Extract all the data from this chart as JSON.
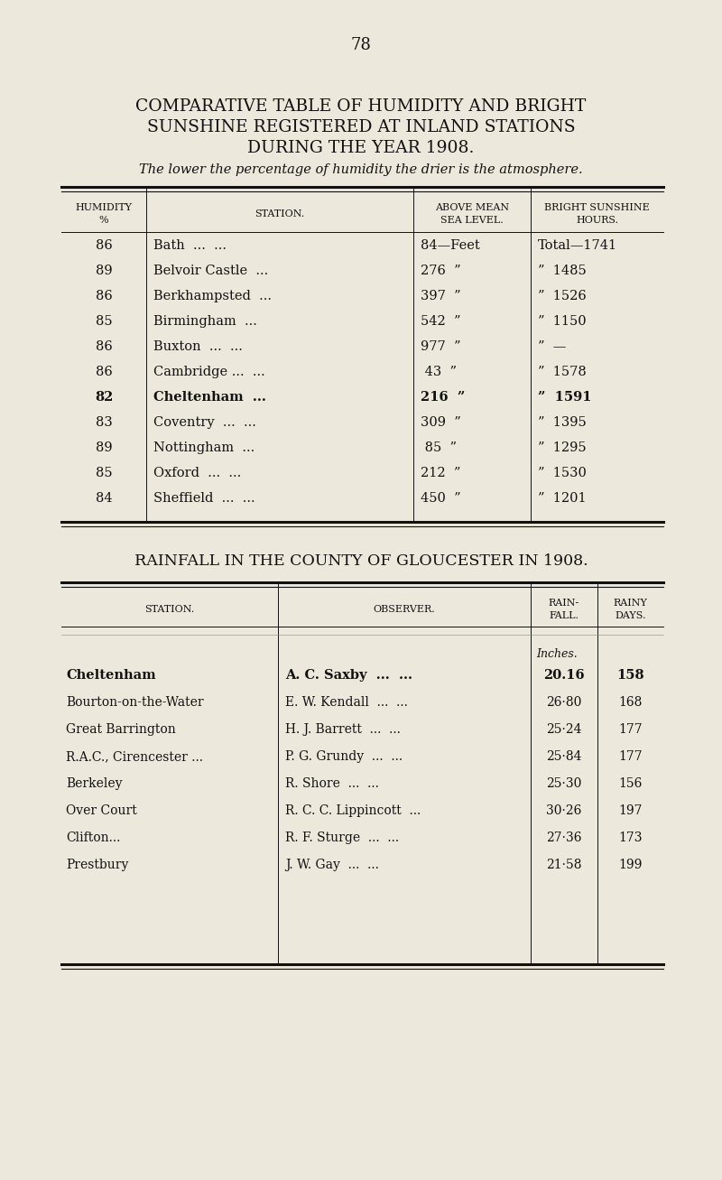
{
  "bg_color": "#EDE8DC",
  "page_num": "78",
  "title1": "COMPARATIVE TABLE OF HUMIDITY AND BRIGHT",
  "title2": "SUNSHINE REGISTERED AT INLAND STATIONS",
  "title3": "DURING THE YEAR 1908.",
  "subtitle": "The lower the percentage of humidity the drier is the atmosphere.",
  "table1_rows": [
    [
      "86",
      "Bath  ...  ...",
      "84—Feet",
      "Total—1741"
    ],
    [
      "89",
      "Belvoir Castle  ...",
      "276  ”",
      "”  1485"
    ],
    [
      "86",
      "Berkhampsted  ...",
      "397  ”",
      "”  1526"
    ],
    [
      "85",
      "Birmingham  ...",
      "542  ”",
      "”  1150"
    ],
    [
      "86",
      "Buxton  ...  ...",
      "977  ”",
      "”  —"
    ],
    [
      "86",
      "Cambridge ...  ...",
      " 43  ”",
      "”  1578"
    ],
    [
      "82",
      "Cheltenham  ...",
      "216  ”",
      "”  1591"
    ],
    [
      "83",
      "Coventry  ...  ...",
      "309  ”",
      "”  1395"
    ],
    [
      "89",
      "Nottingham  ...",
      " 85  ”",
      "”  1295"
    ],
    [
      "85",
      "Oxford  ...  ...",
      "212  ”",
      "”  1530"
    ],
    [
      "84",
      "Sheffield  ...  ...",
      "450  ”",
      "”  1201"
    ]
  ],
  "table1_bold_row": 6,
  "table2_title": "RAINFALL IN THE COUNTY OF GLOUCESTER IN 1908.",
  "table2_rows": [
    [
      "Cheltenham",
      "A. C. Saxby  ...  ...",
      "20.16",
      "158"
    ],
    [
      "Bourton-on-the-Water",
      "E. W. Kendall  ...  ...",
      "26·80",
      "168"
    ],
    [
      "Great Barrington",
      "H. J. Barrett  ...  ...",
      "25·24",
      "177"
    ],
    [
      "R.A.C., Cirencester ...",
      "P. G. Grundy  ...  ...",
      "25·84",
      "177"
    ],
    [
      "Berkeley",
      "R. Shore  ...  ...",
      "25·30",
      "156"
    ],
    [
      "Over Court",
      "R. C. C. Lippincott  ...",
      "30·26",
      "197"
    ],
    [
      "Clifton...",
      "R. F. Sturge  ...  ...",
      "27·36",
      "173"
    ],
    [
      "Prestbury",
      "J. W. Gay  ...  ...",
      "21·58",
      "199"
    ]
  ],
  "table2_bold_row": 0
}
